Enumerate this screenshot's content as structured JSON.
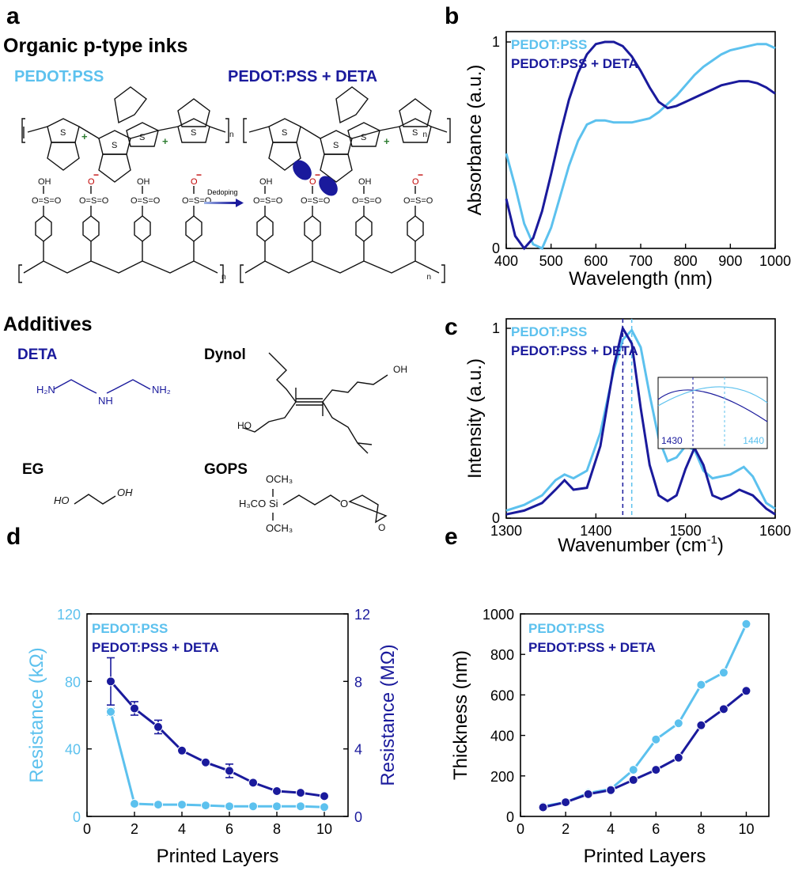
{
  "panels": {
    "a": "a",
    "b": "b",
    "c": "c",
    "d": "d",
    "e": "e"
  },
  "colors": {
    "light": "#5cc1ee",
    "dark": "#1a1a9c",
    "axis": "#000000"
  },
  "section_a": {
    "title": "Organic p-type inks",
    "ink1": "PEDOT:PSS",
    "ink2": "PEDOT:PSS + DETA",
    "arrow_label": "Dedoping",
    "additives_title": "Additives",
    "deta": "DETA",
    "dynol": "Dynol",
    "eg": "EG",
    "gops": "GOPS",
    "chem": {
      "H2N_left": "H₂N",
      "NH": "NH",
      "NH2_right": "NH₂",
      "HO_eg": "HO",
      "OH_eg": "OH",
      "OCH3_top": "OCH₃",
      "H3CO": "H₃CO",
      "Si": "Si",
      "OCH3_bot": "OCH₃",
      "O_gops": "O",
      "O_epox": "O",
      "HO_dyn": "HO",
      "OH_dyn": "OH",
      "n": "n",
      "O": "O",
      "S": "S",
      "OH": "OH",
      "Ominus": "O",
      "SO": "O=S=O"
    }
  },
  "chart_data": [
    {
      "id": "b",
      "type": "line",
      "xlabel": "Wavelength (nm)",
      "ylabel": "Absorbance (a.u.)",
      "xlim": [
        400,
        1000
      ],
      "ylim": [
        0,
        1.05
      ],
      "xticks": [
        400,
        500,
        600,
        700,
        800,
        900,
        1000
      ],
      "yticks": [
        0,
        1
      ],
      "legend_placement": "top-left",
      "series": [
        {
          "name": "PEDOT:PSS",
          "color": "#5cc1ee",
          "x": [
            400,
            420,
            440,
            460,
            480,
            500,
            520,
            540,
            560,
            580,
            600,
            620,
            640,
            660,
            680,
            700,
            720,
            740,
            760,
            780,
            800,
            820,
            840,
            860,
            880,
            900,
            920,
            940,
            960,
            980,
            1000
          ],
          "y": [
            0.46,
            0.3,
            0.12,
            0.02,
            0.0,
            0.1,
            0.25,
            0.4,
            0.52,
            0.6,
            0.62,
            0.62,
            0.61,
            0.61,
            0.61,
            0.62,
            0.63,
            0.66,
            0.7,
            0.74,
            0.79,
            0.84,
            0.88,
            0.91,
            0.94,
            0.96,
            0.97,
            0.98,
            0.99,
            0.99,
            0.97
          ]
        },
        {
          "name": "PEDOT:PSS + DETA",
          "color": "#1a1a9c",
          "x": [
            400,
            420,
            440,
            460,
            480,
            500,
            520,
            540,
            560,
            580,
            600,
            620,
            640,
            660,
            680,
            700,
            720,
            740,
            760,
            780,
            800,
            820,
            840,
            860,
            880,
            900,
            920,
            940,
            960,
            980,
            1000
          ],
          "y": [
            0.24,
            0.06,
            0.0,
            0.05,
            0.18,
            0.36,
            0.55,
            0.72,
            0.85,
            0.94,
            0.99,
            1.0,
            1.0,
            0.98,
            0.93,
            0.86,
            0.78,
            0.71,
            0.68,
            0.69,
            0.71,
            0.73,
            0.75,
            0.77,
            0.79,
            0.8,
            0.81,
            0.81,
            0.8,
            0.78,
            0.75
          ]
        }
      ]
    },
    {
      "id": "c",
      "type": "line",
      "xlabel": "Wavenumber (cm",
      "xlabel_sup": "-1",
      "xlabel_end": ")",
      "ylabel": "Intensity (a.u.)",
      "xlim": [
        1300,
        1600
      ],
      "ylim": [
        0,
        1.05
      ],
      "xticks": [
        1300,
        1400,
        1500,
        1600
      ],
      "yticks": [
        0,
        1
      ],
      "legend_placement": "top-left",
      "vlines": [
        {
          "x": 1430,
          "color": "#1a1a9c"
        },
        {
          "x": 1440,
          "color": "#5cc1ee"
        }
      ],
      "inset": {
        "tick_labels": [
          "1430",
          "1440"
        ]
      },
      "series": [
        {
          "name": "PEDOT:PSS",
          "color": "#5cc1ee",
          "x": [
            1300,
            1320,
            1340,
            1355,
            1365,
            1375,
            1390,
            1405,
            1420,
            1430,
            1440,
            1450,
            1460,
            1470,
            1480,
            1490,
            1500,
            1510,
            1520,
            1530,
            1540,
            1550,
            1565,
            1575,
            1590,
            1600
          ],
          "y": [
            0.04,
            0.07,
            0.12,
            0.2,
            0.23,
            0.21,
            0.25,
            0.45,
            0.78,
            0.94,
            0.99,
            0.9,
            0.65,
            0.42,
            0.3,
            0.32,
            0.38,
            0.36,
            0.25,
            0.21,
            0.22,
            0.23,
            0.27,
            0.22,
            0.08,
            0.05
          ]
        },
        {
          "name": "PEDOT:PSS + DETA",
          "color": "#1a1a9c",
          "x": [
            1300,
            1320,
            1340,
            1355,
            1365,
            1375,
            1390,
            1405,
            1420,
            1430,
            1440,
            1450,
            1460,
            1470,
            1480,
            1490,
            1500,
            1510,
            1520,
            1530,
            1540,
            1550,
            1560,
            1575,
            1590,
            1600
          ],
          "y": [
            0.02,
            0.04,
            0.08,
            0.15,
            0.2,
            0.15,
            0.16,
            0.38,
            0.8,
            1.0,
            0.92,
            0.58,
            0.28,
            0.12,
            0.09,
            0.12,
            0.26,
            0.37,
            0.28,
            0.12,
            0.1,
            0.12,
            0.15,
            0.12,
            0.05,
            0.02
          ]
        }
      ]
    },
    {
      "id": "d",
      "type": "line",
      "xlabel": "Printed Layers",
      "ylabel": "Resistance (kΩ)",
      "ylabel_right": "Resistance (MΩ)",
      "xlim": [
        0,
        11
      ],
      "ylim": [
        0,
        120
      ],
      "ylim_right": [
        0,
        12
      ],
      "xticks": [
        0,
        2,
        4,
        6,
        8,
        10
      ],
      "yticks": [
        0,
        40,
        80,
        120
      ],
      "yticks_right": [
        0,
        4,
        8,
        12
      ],
      "legend_placement": "top-left",
      "series": [
        {
          "name": "PEDOT:PSS",
          "color": "#5cc1ee",
          "axis": "left",
          "x": [
            1,
            2,
            3,
            4,
            5,
            6,
            7,
            8,
            9,
            10
          ],
          "y": [
            62,
            7.5,
            7,
            7,
            6.5,
            6,
            6,
            6,
            6,
            5.5
          ],
          "err": [
            2,
            1,
            1,
            0,
            0,
            0,
            0,
            0,
            0,
            0
          ]
        },
        {
          "name": "PEDOT:PSS + DETA",
          "color": "#1a1a9c",
          "axis": "right",
          "x": [
            1,
            2,
            3,
            4,
            5,
            6,
            7,
            8,
            9,
            10
          ],
          "y": [
            8.0,
            6.4,
            5.3,
            3.9,
            3.2,
            2.7,
            2.0,
            1.5,
            1.4,
            1.2
          ],
          "err": [
            1.4,
            0.4,
            0.4,
            0.1,
            0.1,
            0.4,
            0.1,
            0.1,
            0.1,
            0.1
          ]
        }
      ]
    },
    {
      "id": "e",
      "type": "line",
      "xlabel": "Printed Layers",
      "ylabel": "Thickness (nm)",
      "xlim": [
        0,
        11
      ],
      "ylim": [
        0,
        1000
      ],
      "xticks": [
        0,
        2,
        4,
        6,
        8,
        10
      ],
      "yticks": [
        0,
        200,
        400,
        600,
        800,
        1000
      ],
      "legend_placement": "top-left",
      "series": [
        {
          "name": "PEDOT:PSS",
          "color": "#5cc1ee",
          "x": [
            1,
            2,
            3,
            4,
            5,
            6,
            7,
            8,
            9,
            10
          ],
          "y": [
            50,
            70,
            115,
            135,
            230,
            380,
            460,
            650,
            710,
            950
          ]
        },
        {
          "name": "PEDOT:PSS + DETA",
          "color": "#1a1a9c",
          "x": [
            1,
            2,
            3,
            4,
            5,
            6,
            7,
            8,
            9,
            10
          ],
          "y": [
            45,
            70,
            110,
            130,
            180,
            230,
            290,
            450,
            530,
            620
          ]
        }
      ]
    }
  ]
}
